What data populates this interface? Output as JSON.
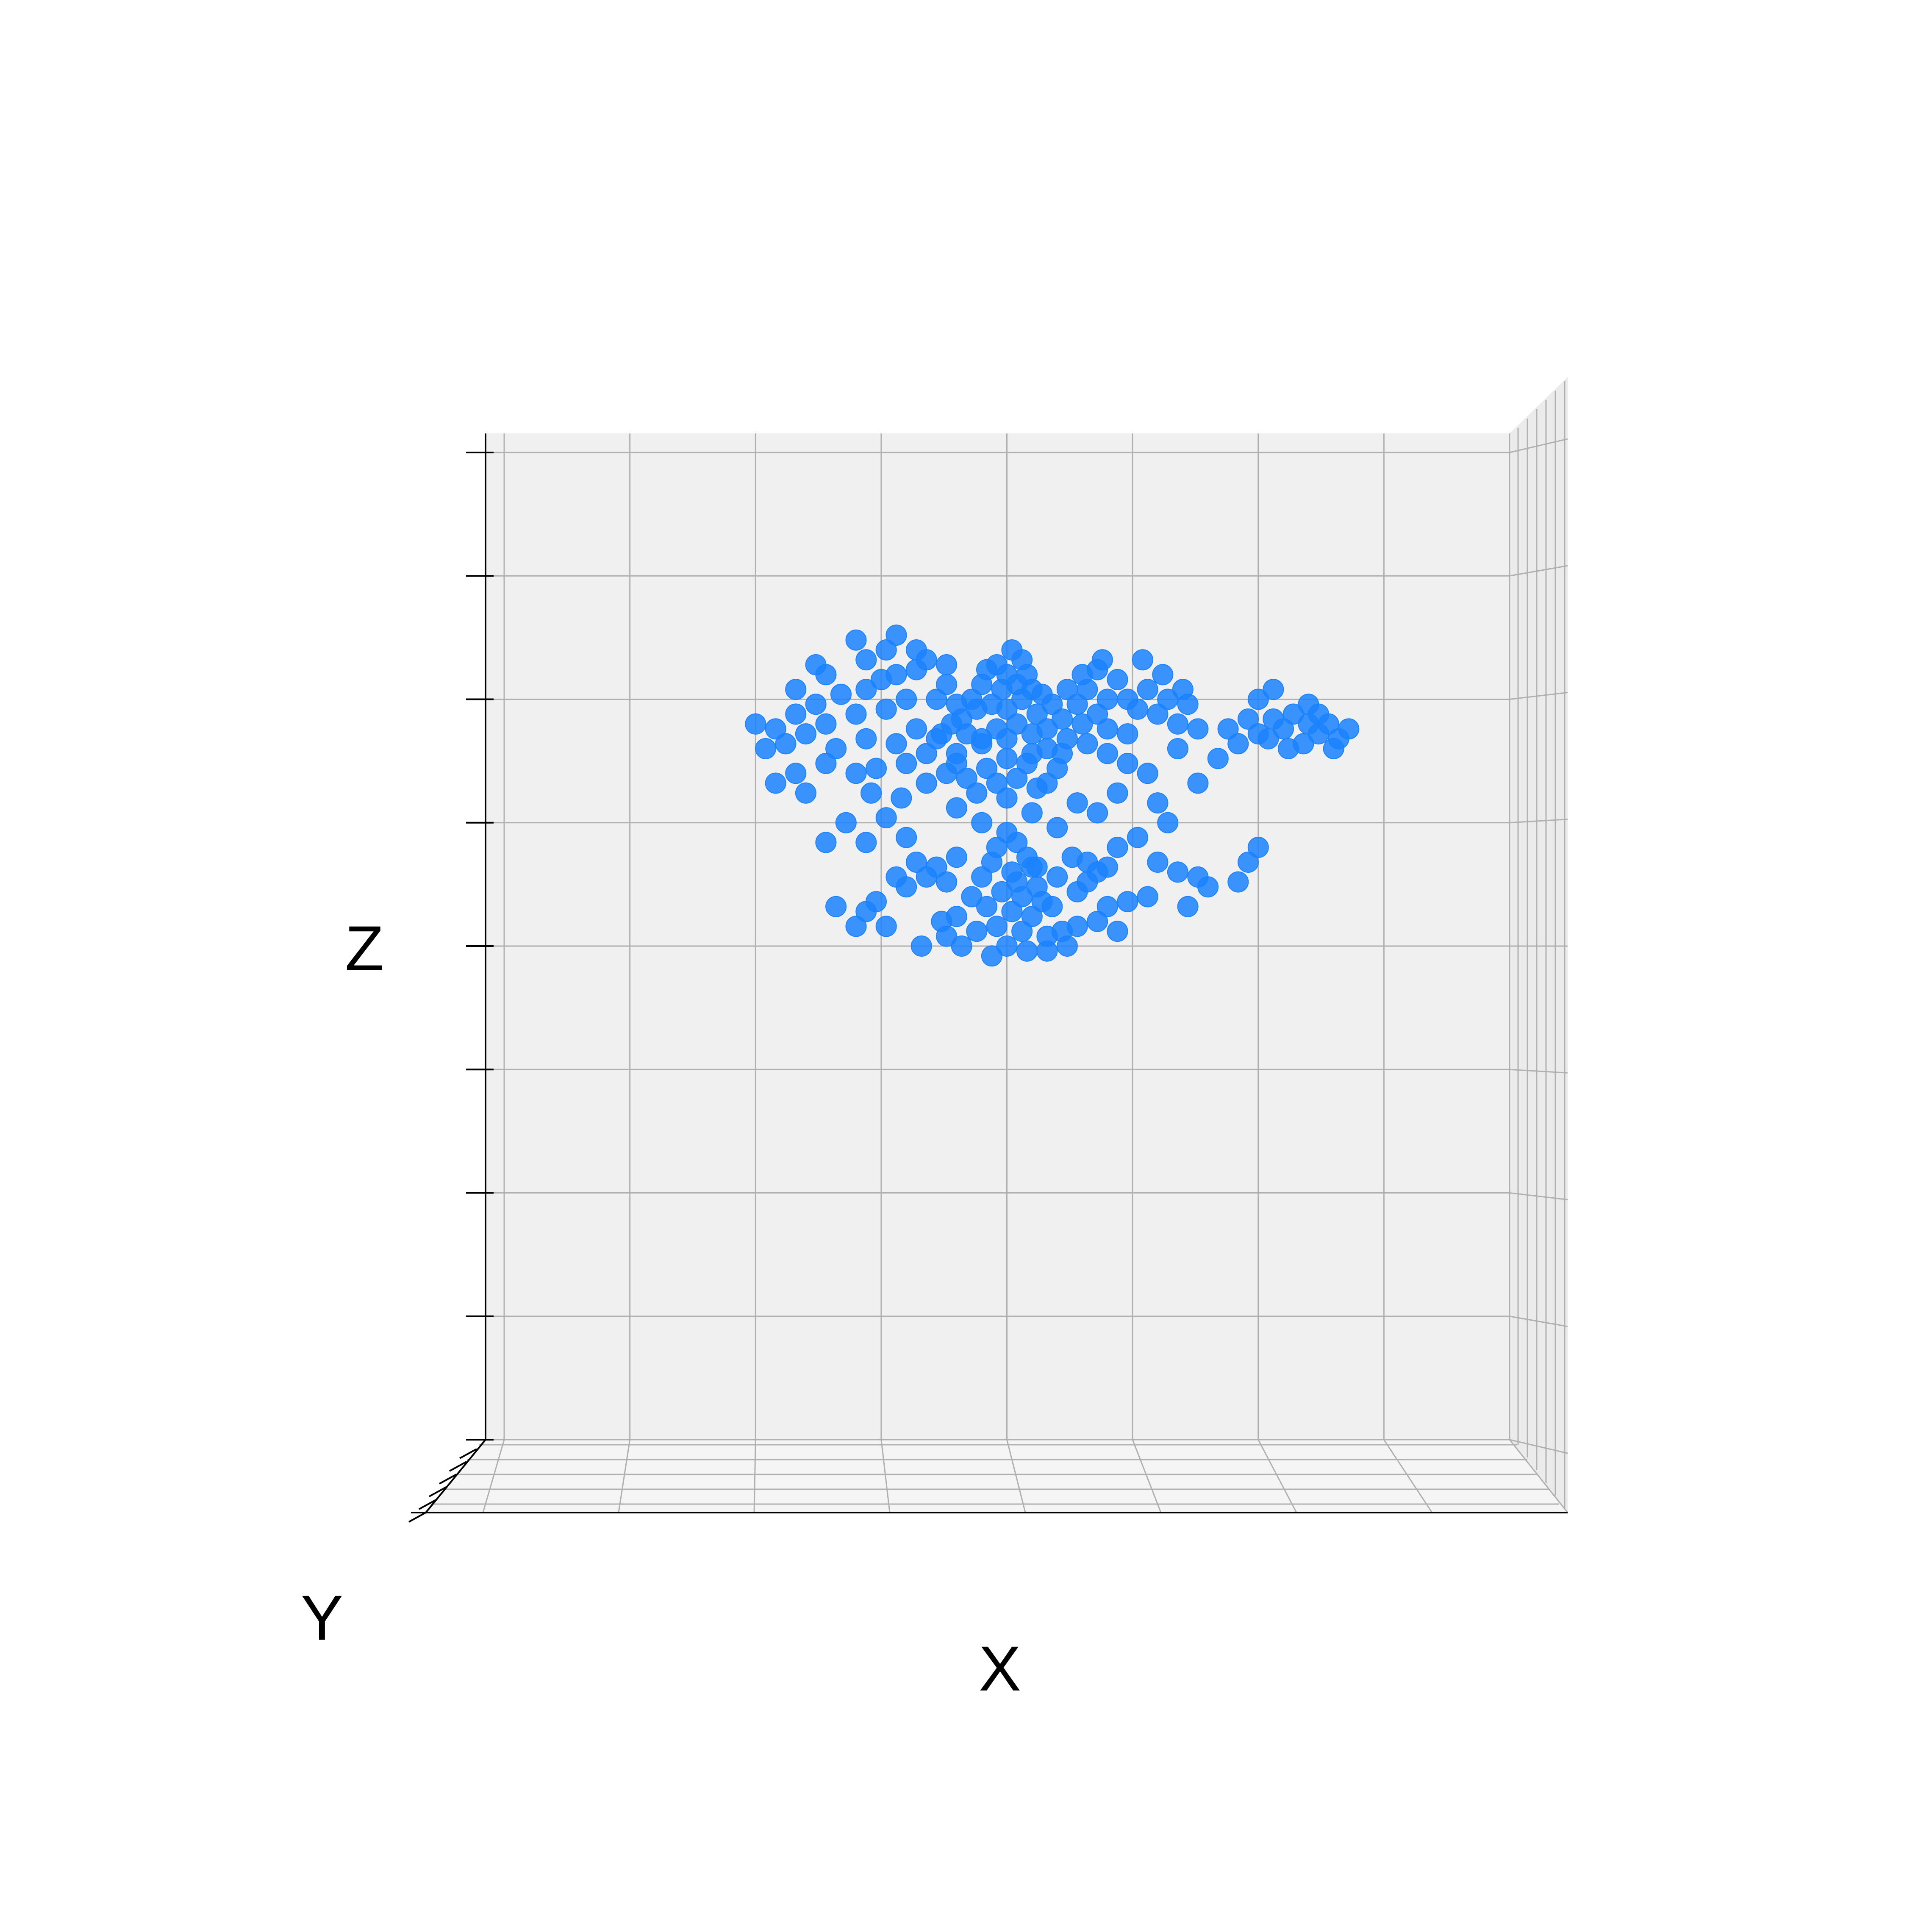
{
  "chart_data": {
    "type": "scatter",
    "view": "3d-front",
    "xlabel": "X",
    "ylabel": "Y",
    "zlabel": "Z",
    "xlim": [
      -1.0,
      1.0
    ],
    "ylim": [
      -1.0,
      1.0
    ],
    "zlim": [
      -1.0,
      1.0
    ],
    "grid": true,
    "marker_color": "#1a82ff",
    "pane_color": "#f0f0f0",
    "grid_color": "#b0b0b0",
    "series": [
      {
        "points": [
          [
            0.01,
            0.6
          ],
          [
            0.03,
            0.58
          ],
          [
            -0.02,
            0.57
          ],
          [
            0.0,
            0.55
          ],
          [
            0.04,
            0.55
          ],
          [
            -0.04,
            0.56
          ],
          [
            0.02,
            0.53
          ],
          [
            -0.01,
            0.52
          ],
          [
            0.05,
            0.52
          ],
          [
            -0.05,
            0.53
          ],
          [
            0.07,
            0.51
          ],
          [
            -0.07,
            0.5
          ],
          [
            0.03,
            0.5
          ],
          [
            -0.03,
            0.49
          ],
          [
            0.0,
            0.48
          ],
          [
            0.06,
            0.47
          ],
          [
            -0.06,
            0.48
          ],
          [
            0.09,
            0.49
          ],
          [
            -0.09,
            0.46
          ],
          [
            0.02,
            0.45
          ],
          [
            -0.02,
            0.44
          ],
          [
            0.05,
            0.43
          ],
          [
            -0.05,
            0.42
          ],
          [
            0.08,
            0.44
          ],
          [
            -0.08,
            0.43
          ],
          [
            0.0,
            0.42
          ],
          [
            0.11,
            0.46
          ],
          [
            -0.11,
            0.45
          ],
          [
            0.12,
            0.52
          ],
          [
            -0.12,
            0.53
          ],
          [
            0.14,
            0.49
          ],
          [
            -0.14,
            0.5
          ],
          [
            -0.18,
            0.56
          ],
          [
            -0.22,
            0.55
          ],
          [
            -0.25,
            0.54
          ],
          [
            -0.28,
            0.52
          ],
          [
            -0.2,
            0.5
          ],
          [
            -0.24,
            0.48
          ],
          [
            -0.3,
            0.47
          ],
          [
            -0.33,
            0.51
          ],
          [
            -0.36,
            0.45
          ],
          [
            -0.38,
            0.49
          ],
          [
            -0.4,
            0.43
          ],
          [
            -0.42,
            0.47
          ],
          [
            -0.44,
            0.41
          ],
          [
            -0.46,
            0.44
          ],
          [
            -0.48,
            0.4
          ],
          [
            -0.5,
            0.45
          ],
          [
            -0.34,
            0.4
          ],
          [
            -0.28,
            0.42
          ],
          [
            -0.22,
            0.41
          ],
          [
            -0.18,
            0.44
          ],
          [
            -0.16,
            0.39
          ],
          [
            -0.2,
            0.37
          ],
          [
            -0.26,
            0.36
          ],
          [
            -0.3,
            0.35
          ],
          [
            -0.36,
            0.37
          ],
          [
            -0.42,
            0.35
          ],
          [
            -0.46,
            0.33
          ],
          [
            -0.4,
            0.31
          ],
          [
            -0.27,
            0.31
          ],
          [
            -0.21,
            0.3
          ],
          [
            -0.16,
            0.33
          ],
          [
            -0.12,
            0.35
          ],
          [
            -0.1,
            0.39
          ],
          [
            -0.14,
            0.42
          ],
          [
            -0.24,
            0.6
          ],
          [
            -0.18,
            0.6
          ],
          [
            -0.28,
            0.58
          ],
          [
            -0.36,
            0.55
          ],
          [
            -0.42,
            0.52
          ],
          [
            -0.38,
            0.57
          ],
          [
            -0.3,
            0.62
          ],
          [
            -0.22,
            0.63
          ],
          [
            -0.16,
            0.58
          ],
          [
            -0.12,
            0.57
          ],
          [
            -0.1,
            0.49
          ],
          [
            0.08,
            0.4
          ],
          [
            0.12,
            0.42
          ],
          [
            0.15,
            0.45
          ],
          [
            0.18,
            0.47
          ],
          [
            0.2,
            0.5
          ],
          [
            0.22,
            0.54
          ],
          [
            0.24,
            0.5
          ],
          [
            0.26,
            0.48
          ],
          [
            0.28,
            0.52
          ],
          [
            0.3,
            0.47
          ],
          [
            0.32,
            0.5
          ],
          [
            0.34,
            0.45
          ],
          [
            0.36,
            0.49
          ],
          [
            0.38,
            0.44
          ],
          [
            0.2,
            0.44
          ],
          [
            0.24,
            0.43
          ],
          [
            0.16,
            0.52
          ],
          [
            0.18,
            0.56
          ],
          [
            0.27,
            0.58
          ],
          [
            0.31,
            0.55
          ],
          [
            0.35,
            0.52
          ],
          [
            0.19,
            0.58
          ],
          [
            0.15,
            0.55
          ],
          [
            0.5,
            0.5
          ],
          [
            0.53,
            0.46
          ],
          [
            0.55,
            0.44
          ],
          [
            0.57,
            0.47
          ],
          [
            0.6,
            0.45
          ],
          [
            0.62,
            0.43
          ],
          [
            0.64,
            0.45
          ],
          [
            0.66,
            0.42
          ],
          [
            0.68,
            0.44
          ],
          [
            0.59,
            0.41
          ],
          [
            0.52,
            0.42
          ],
          [
            0.56,
            0.4
          ],
          [
            0.62,
            0.47
          ],
          [
            0.65,
            0.4
          ],
          [
            0.53,
            0.52
          ],
          [
            0.6,
            0.49
          ],
          [
            0.5,
            0.43
          ],
          [
            0.48,
            0.46
          ],
          [
            0.44,
            0.44
          ],
          [
            0.46,
            0.41
          ],
          [
            0.0,
            0.38
          ],
          [
            0.04,
            0.37
          ],
          [
            -0.04,
            0.36
          ],
          [
            0.02,
            0.34
          ],
          [
            -0.02,
            0.33
          ],
          [
            0.06,
            0.32
          ],
          [
            -0.06,
            0.31
          ],
          [
            0.0,
            0.3
          ],
          [
            0.08,
            0.33
          ],
          [
            -0.08,
            0.34
          ],
          [
            0.1,
            0.36
          ],
          [
            -0.1,
            0.37
          ],
          [
            0.05,
            0.39
          ],
          [
            -0.05,
            0.41
          ],
          [
            0.11,
            0.39
          ],
          [
            -0.13,
            0.43
          ],
          [
            0.0,
            0.23
          ],
          [
            0.02,
            0.21
          ],
          [
            -0.02,
            0.2
          ],
          [
            0.04,
            0.18
          ],
          [
            -0.03,
            0.17
          ],
          [
            0.01,
            0.15
          ],
          [
            0.05,
            0.16
          ],
          [
            -0.05,
            0.14
          ],
          [
            0.02,
            0.13
          ],
          [
            0.06,
            0.12
          ],
          [
            -0.01,
            0.11
          ],
          [
            0.03,
            0.1
          ],
          [
            0.07,
            0.09
          ],
          [
            -0.04,
            0.08
          ],
          [
            0.01,
            0.07
          ],
          [
            0.05,
            0.06
          ],
          [
            0.09,
            0.08
          ],
          [
            -0.07,
            0.1
          ],
          [
            -0.1,
            0.06
          ],
          [
            -0.13,
            0.05
          ],
          [
            0.11,
            0.03
          ],
          [
            0.14,
            0.04
          ],
          [
            0.08,
            0.02
          ],
          [
            0.03,
            0.03
          ],
          [
            -0.02,
            0.04
          ],
          [
            -0.06,
            0.03
          ],
          [
            0.0,
            0.0
          ],
          [
            0.04,
            -0.01
          ],
          [
            -0.03,
            -0.02
          ],
          [
            0.08,
            -0.01
          ],
          [
            0.12,
            0.0
          ],
          [
            -0.09,
            0.0
          ],
          [
            0.06,
            0.16
          ],
          [
            0.1,
            0.14
          ],
          [
            0.13,
            0.18
          ],
          [
            0.16,
            0.17
          ],
          [
            0.18,
            0.15
          ],
          [
            0.2,
            0.16
          ],
          [
            0.16,
            0.13
          ],
          [
            0.14,
            0.11
          ],
          [
            -0.1,
            0.18
          ],
          [
            -0.14,
            0.16
          ],
          [
            -0.16,
            0.14
          ],
          [
            -0.18,
            0.17
          ],
          [
            -0.12,
            0.13
          ],
          [
            -0.2,
            0.12
          ],
          [
            -0.22,
            0.14
          ],
          [
            -0.26,
            0.09
          ],
          [
            -0.28,
            0.07
          ],
          [
            -0.24,
            0.04
          ],
          [
            -0.17,
            0.0
          ],
          [
            -0.12,
            0.02
          ],
          [
            -0.3,
            0.04
          ],
          [
            -0.34,
            0.08
          ],
          [
            0.2,
            0.08
          ],
          [
            0.24,
            0.09
          ],
          [
            0.18,
            0.05
          ],
          [
            0.22,
            0.03
          ],
          [
            0.3,
            0.17
          ],
          [
            0.34,
            0.15
          ],
          [
            0.38,
            0.14
          ],
          [
            0.4,
            0.12
          ],
          [
            0.46,
            0.13
          ],
          [
            0.48,
            0.17
          ],
          [
            0.5,
            0.2
          ],
          [
            0.36,
            0.08
          ],
          [
            0.28,
            0.1
          ],
          [
            0.22,
            0.2
          ],
          [
            0.26,
            0.22
          ],
          [
            0.32,
            0.25
          ],
          [
            -0.32,
            0.25
          ],
          [
            -0.28,
            0.21
          ],
          [
            -0.24,
            0.26
          ],
          [
            -0.2,
            0.22
          ],
          [
            -0.36,
            0.21
          ],
          [
            0.05,
            0.27
          ],
          [
            -0.05,
            0.25
          ],
          [
            0.1,
            0.24
          ],
          [
            -0.1,
            0.28
          ],
          [
            0.14,
            0.29
          ],
          [
            0.18,
            0.27
          ],
          [
            0.22,
            0.31
          ],
          [
            0.28,
            0.35
          ],
          [
            0.3,
            0.29
          ],
          [
            0.24,
            0.37
          ],
          [
            0.42,
            0.38
          ],
          [
            0.38,
            0.33
          ],
          [
            0.34,
            0.4
          ],
          [
            0.2,
            0.39
          ],
          [
            0.16,
            0.41
          ]
        ]
      }
    ]
  }
}
